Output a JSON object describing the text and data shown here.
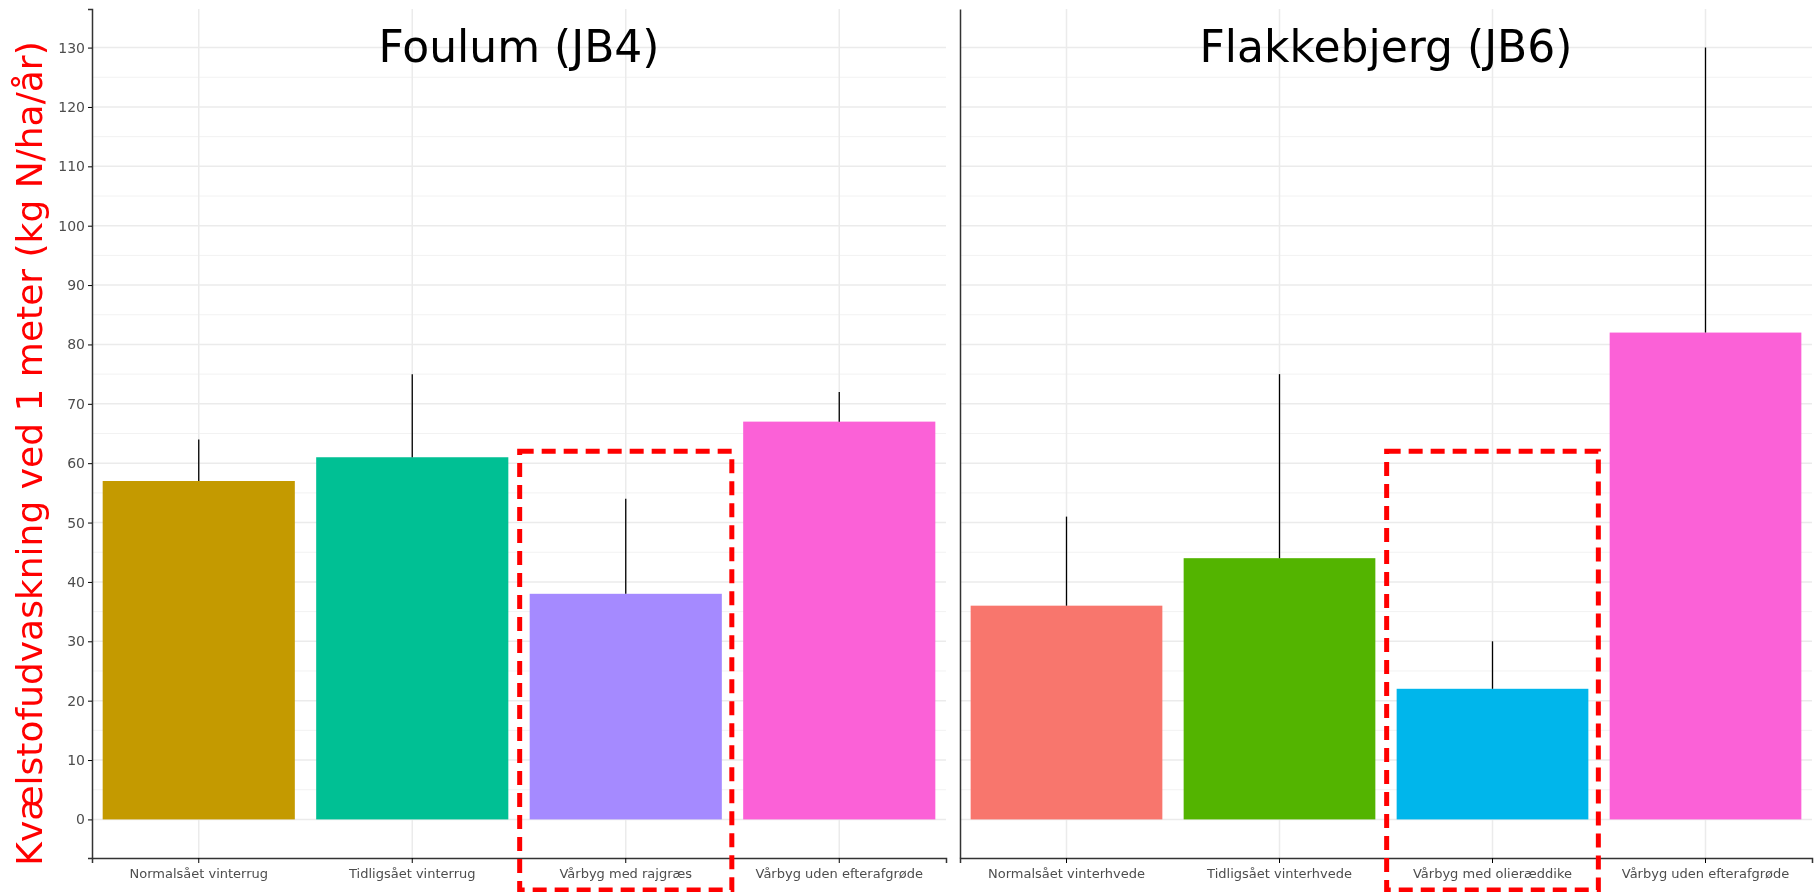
{
  "chart_data": [
    {
      "type": "bar",
      "title": "Foulum (JB4)",
      "ylabel": "Kvælstofudvaskning ved 1 meter (kg N/ha/år)",
      "categories": [
        "Normalsået vinterrug",
        "Tidligsået vinterrug",
        "Vårbyg med rajgræs",
        "Vårbyg uden efterafgrøde"
      ],
      "values": [
        57,
        61,
        38,
        67
      ],
      "errors": [
        [
          57,
          64
        ],
        [
          61,
          75
        ],
        [
          38,
          54
        ],
        [
          67,
          72
        ]
      ],
      "colors": [
        "#c49a00",
        "#00c094",
        "#a58aff",
        "#fb61d7"
      ],
      "ylim": [
        -6.5,
        136.5
      ],
      "yticks": [
        0,
        10,
        20,
        30,
        40,
        50,
        60,
        70,
        80,
        90,
        100,
        110,
        120,
        130
      ],
      "grid": true
    },
    {
      "type": "bar",
      "title": "Flakkebjerg (JB6)",
      "categories": [
        "Normalsået vinterhvede",
        "Tidligsået vinterhvede",
        "Vårbyg med olieræddike",
        "Vårbyg uden efterafgrøde"
      ],
      "values": [
        36,
        44,
        22,
        82
      ],
      "errors": [
        [
          36,
          51
        ],
        [
          44,
          75
        ],
        [
          22,
          30
        ],
        [
          82,
          130
        ]
      ],
      "colors": [
        "#f8766d",
        "#53b400",
        "#00b6eb",
        "#fb61d7"
      ],
      "ylim": [
        -6.5,
        136.5
      ],
      "yticks": [
        0,
        10,
        20,
        30,
        40,
        50,
        60,
        70,
        80,
        90,
        100,
        110,
        120,
        130
      ],
      "tick_labels": "x",
      "grid": true
    }
  ]
}
